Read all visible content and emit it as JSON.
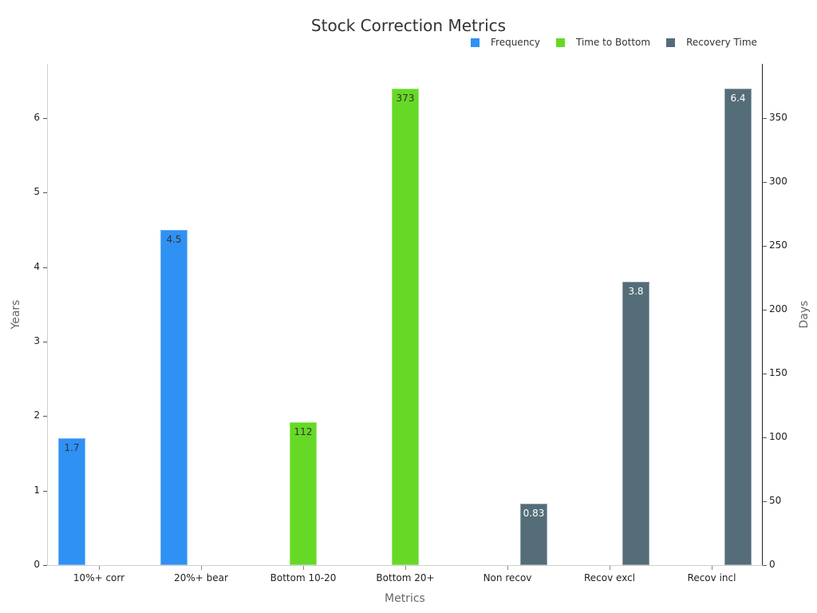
{
  "chart_data": {
    "type": "bar",
    "title": "Stock Correction Metrics",
    "xlabel": "Metrics",
    "ylabel": "Years",
    "y2label": "Days",
    "ylim": [
      0,
      6.7
    ],
    "y2lim": [
      0,
      392
    ],
    "yticks": [
      0,
      1,
      2,
      3,
      4,
      5,
      6
    ],
    "y2ticks": [
      0,
      50,
      100,
      150,
      200,
      250,
      300,
      350
    ],
    "categories": [
      "10%+ corr",
      "20%+ bear",
      "Bottom 10-20",
      "Bottom 20+",
      "Non recov",
      "Recov excl",
      "Recov incl"
    ],
    "legend_position": "top-right",
    "grid": false,
    "series": [
      {
        "name": "Frequency",
        "axis": "left",
        "unit": "Years",
        "color": "#2f91f4",
        "values": [
          1.7,
          4.5,
          null,
          null,
          null,
          null,
          null
        ],
        "labels": [
          "1.7",
          "4.5",
          "",
          "",
          "",
          "",
          ""
        ]
      },
      {
        "name": "Time to Bottom",
        "axis": "right",
        "unit": "Days",
        "color": "#66d926",
        "values": [
          null,
          null,
          112,
          373,
          null,
          null,
          null
        ],
        "labels": [
          "",
          "",
          "112",
          "373",
          "",
          "",
          ""
        ]
      },
      {
        "name": "Recovery Time",
        "axis": "left",
        "unit": "Years",
        "color": "#546d78",
        "values": [
          null,
          null,
          null,
          null,
          0.83,
          3.8,
          6.4
        ],
        "labels": [
          "",
          "",
          "",
          "",
          "0.83",
          "3.8",
          "6.4"
        ]
      }
    ]
  }
}
